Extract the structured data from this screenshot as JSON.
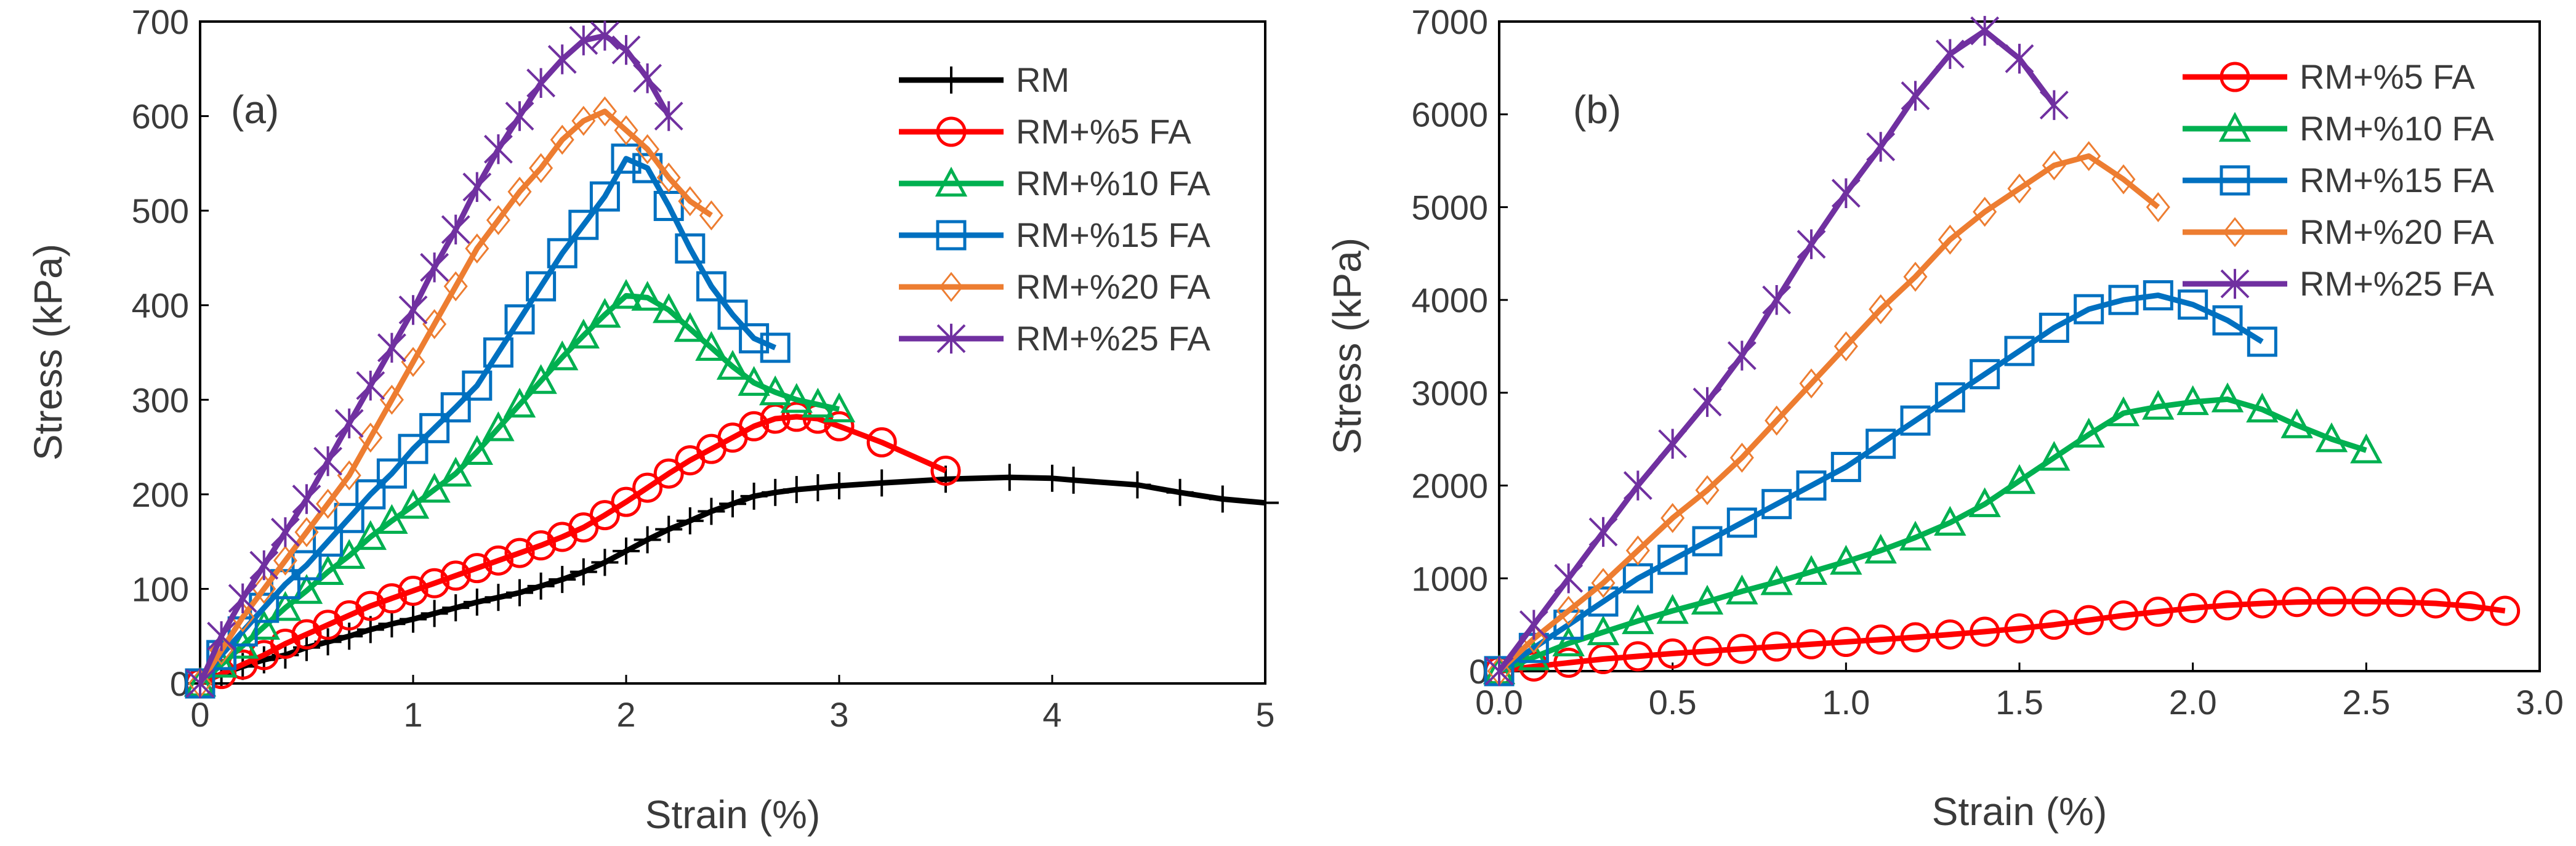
{
  "chart_data": [
    {
      "type": "line",
      "panel_label": "(a)",
      "xlabel": "Strain (%)",
      "ylabel": "Stress (kPa)",
      "xlim": [
        0,
        5
      ],
      "ylim": [
        0,
        700
      ],
      "xticks": [
        "0",
        "1",
        "2",
        "3",
        "4",
        "5"
      ],
      "yticks": [
        "0",
        "100",
        "200",
        "300",
        "400",
        "500",
        "600",
        "700"
      ],
      "grid": false,
      "legend_position": "top-right",
      "series": [
        {
          "name": "RM",
          "color": "#000000",
          "marker": "plus",
          "x": [
            0,
            0.1,
            0.2,
            0.3,
            0.4,
            0.5,
            0.6,
            0.7,
            0.8,
            0.9,
            1.0,
            1.1,
            1.2,
            1.3,
            1.4,
            1.5,
            1.6,
            1.7,
            1.8,
            1.9,
            2.0,
            2.1,
            2.2,
            2.3,
            2.4,
            2.5,
            2.6,
            2.7,
            2.8,
            2.9,
            3.0,
            3.2,
            3.5,
            3.8,
            4.0,
            4.1,
            4.4,
            4.6,
            4.8,
            5.0
          ],
          "y": [
            0,
            10,
            18,
            25,
            30,
            38,
            44,
            50,
            57,
            63,
            68,
            74,
            80,
            86,
            91,
            96,
            103,
            110,
            118,
            128,
            140,
            152,
            163,
            172,
            182,
            190,
            198,
            202,
            205,
            207,
            209,
            212,
            216,
            218,
            217,
            215,
            210,
            202,
            195,
            191
          ]
        },
        {
          "name": "RM+%5 FA",
          "color": "#ff0000",
          "marker": "circle",
          "x": [
            0,
            0.1,
            0.2,
            0.3,
            0.4,
            0.5,
            0.6,
            0.7,
            0.8,
            0.9,
            1.0,
            1.1,
            1.2,
            1.3,
            1.4,
            1.5,
            1.6,
            1.7,
            1.8,
            1.9,
            2.0,
            2.1,
            2.2,
            2.3,
            2.4,
            2.5,
            2.6,
            2.7,
            2.8,
            2.9,
            3.0,
            3.2,
            3.5
          ],
          "y": [
            0,
            10,
            20,
            30,
            42,
            52,
            62,
            72,
            82,
            90,
            98,
            106,
            114,
            122,
            130,
            138,
            146,
            155,
            165,
            178,
            192,
            207,
            222,
            236,
            248,
            260,
            272,
            280,
            282,
            280,
            272,
            255,
            225
          ]
        },
        {
          "name": "RM+%10 FA",
          "color": "#00b050",
          "marker": "triangle",
          "x": [
            0,
            0.1,
            0.2,
            0.3,
            0.4,
            0.5,
            0.6,
            0.7,
            0.8,
            0.9,
            1.0,
            1.1,
            1.2,
            1.3,
            1.4,
            1.5,
            1.6,
            1.7,
            1.8,
            1.9,
            2.0,
            2.1,
            2.2,
            2.3,
            2.4,
            2.5,
            2.6,
            2.7,
            2.8,
            2.9,
            3.0
          ],
          "y": [
            0,
            20,
            40,
            60,
            80,
            98,
            118,
            135,
            155,
            172,
            188,
            205,
            222,
            245,
            270,
            295,
            320,
            345,
            368,
            390,
            410,
            408,
            395,
            375,
            355,
            335,
            318,
            308,
            300,
            295,
            290
          ]
        },
        {
          "name": "RM+%15 FA",
          "color": "#0070c0",
          "marker": "square",
          "x": [
            0,
            0.1,
            0.2,
            0.3,
            0.4,
            0.5,
            0.6,
            0.7,
            0.8,
            0.9,
            1.0,
            1.1,
            1.2,
            1.3,
            1.4,
            1.5,
            1.6,
            1.7,
            1.8,
            1.9,
            2.0,
            2.1,
            2.2,
            2.3,
            2.4,
            2.5,
            2.6,
            2.7
          ],
          "y": [
            0,
            30,
            55,
            80,
            105,
            125,
            150,
            175,
            200,
            222,
            248,
            270,
            292,
            315,
            350,
            385,
            420,
            455,
            485,
            515,
            555,
            545,
            505,
            460,
            420,
            390,
            365,
            355
          ]
        },
        {
          "name": "RM+%20 FA",
          "color": "#ed7d31",
          "marker": "diamond",
          "x": [
            0,
            0.1,
            0.2,
            0.3,
            0.4,
            0.5,
            0.6,
            0.7,
            0.8,
            0.9,
            1.0,
            1.1,
            1.2,
            1.3,
            1.4,
            1.5,
            1.6,
            1.7,
            1.8,
            1.9,
            2.0,
            2.1,
            2.2,
            2.3,
            2.4
          ],
          "y": [
            0,
            35,
            70,
            100,
            130,
            160,
            190,
            220,
            260,
            300,
            340,
            380,
            420,
            460,
            490,
            520,
            545,
            575,
            595,
            605,
            585,
            565,
            535,
            510,
            495
          ]
        },
        {
          "name": "RM+%25 FA",
          "color": "#7030a0",
          "marker": "x",
          "x": [
            0,
            0.1,
            0.2,
            0.3,
            0.4,
            0.5,
            0.6,
            0.7,
            0.8,
            0.9,
            1.0,
            1.1,
            1.2,
            1.3,
            1.4,
            1.5,
            1.6,
            1.7,
            1.8,
            1.9,
            2.0,
            2.1,
            2.2
          ],
          "y": [
            0,
            50,
            90,
            125,
            160,
            195,
            235,
            275,
            315,
            355,
            395,
            440,
            480,
            525,
            565,
            600,
            635,
            660,
            680,
            685,
            670,
            640,
            600
          ]
        }
      ]
    },
    {
      "type": "line",
      "panel_label": "(b)",
      "xlabel": "Strain (%)",
      "ylabel": "Stress (kPa)",
      "xlim": [
        0,
        3
      ],
      "ylim": [
        0,
        7000
      ],
      "xticks": [
        "0.0",
        "0.5",
        "1.0",
        "1.5",
        "2.0",
        "2.5",
        "3.0"
      ],
      "yticks": [
        "0",
        "1000",
        "2000",
        "3000",
        "4000",
        "5000",
        "6000",
        "7000"
      ],
      "grid": false,
      "legend_position": "top-right",
      "series": [
        {
          "name": "RM+%5 FA",
          "color": "#ff0000",
          "marker": "circle",
          "x": [
            0,
            0.1,
            0.2,
            0.3,
            0.4,
            0.5,
            0.6,
            0.7,
            0.8,
            0.9,
            1.0,
            1.1,
            1.2,
            1.3,
            1.4,
            1.5,
            1.6,
            1.7,
            1.8,
            1.9,
            2.0,
            2.1,
            2.2,
            2.3,
            2.4,
            2.5,
            2.6,
            2.7,
            2.8,
            2.9
          ],
          "y": [
            0,
            50,
            90,
            130,
            160,
            190,
            215,
            240,
            265,
            290,
            315,
            340,
            365,
            395,
            425,
            460,
            500,
            550,
            600,
            640,
            680,
            710,
            730,
            745,
            750,
            750,
            745,
            730,
            700,
            650
          ]
        },
        {
          "name": "RM+%10 FA",
          "color": "#00b050",
          "marker": "triangle",
          "x": [
            0,
            0.1,
            0.2,
            0.3,
            0.4,
            0.5,
            0.6,
            0.7,
            0.8,
            0.9,
            1.0,
            1.1,
            1.2,
            1.3,
            1.4,
            1.5,
            1.6,
            1.7,
            1.8,
            1.9,
            2.0,
            2.1,
            2.2,
            2.3,
            2.4,
            2.5
          ],
          "y": [
            0,
            150,
            300,
            420,
            540,
            650,
            750,
            860,
            960,
            1070,
            1180,
            1300,
            1440,
            1600,
            1800,
            2050,
            2300,
            2550,
            2780,
            2850,
            2900,
            2930,
            2820,
            2650,
            2500,
            2380
          ]
        },
        {
          "name": "RM+%15 FA",
          "color": "#0070c0",
          "marker": "square",
          "x": [
            0,
            0.1,
            0.2,
            0.3,
            0.4,
            0.5,
            0.6,
            0.7,
            0.8,
            0.9,
            1.0,
            1.1,
            1.2,
            1.3,
            1.4,
            1.5,
            1.6,
            1.7,
            1.8,
            1.9,
            2.0,
            2.1,
            2.2
          ],
          "y": [
            0,
            250,
            500,
            750,
            1000,
            1200,
            1400,
            1600,
            1800,
            2000,
            2200,
            2450,
            2700,
            2950,
            3200,
            3450,
            3700,
            3900,
            4000,
            4050,
            3950,
            3780,
            3550
          ]
        },
        {
          "name": "RM+%20 FA",
          "color": "#ed7d31",
          "marker": "diamond",
          "x": [
            0,
            0.1,
            0.2,
            0.3,
            0.4,
            0.5,
            0.6,
            0.7,
            0.8,
            0.9,
            1.0,
            1.1,
            1.2,
            1.3,
            1.4,
            1.5,
            1.6,
            1.7,
            1.8,
            1.9
          ],
          "y": [
            0,
            350,
            650,
            950,
            1300,
            1650,
            1950,
            2300,
            2700,
            3100,
            3500,
            3900,
            4250,
            4650,
            4950,
            5200,
            5450,
            5550,
            5300,
            5000
          ]
        },
        {
          "name": "RM+%25 FA",
          "color": "#7030a0",
          "marker": "x",
          "x": [
            0,
            0.1,
            0.2,
            0.3,
            0.4,
            0.5,
            0.6,
            0.7,
            0.8,
            0.9,
            1.0,
            1.1,
            1.2,
            1.3,
            1.4,
            1.5,
            1.6
          ],
          "y": [
            0,
            500,
            1000,
            1500,
            2000,
            2450,
            2900,
            3400,
            4000,
            4600,
            5150,
            5650,
            6200,
            6650,
            6900,
            6600,
            6100
          ]
        }
      ]
    }
  ]
}
